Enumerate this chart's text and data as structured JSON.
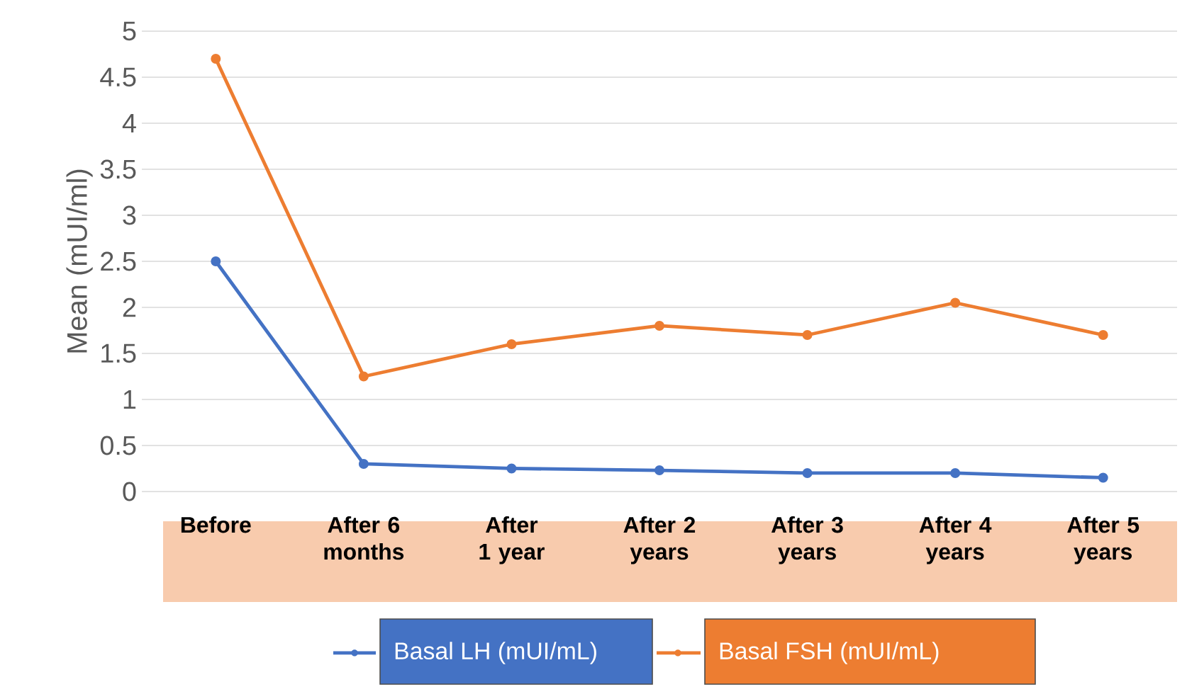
{
  "chart_data": {
    "type": "line",
    "ylabel": "Mean (mUI/ml)",
    "categories": [
      "Before",
      "After 6 months",
      "After 1 year",
      "After 2 years",
      "After 3 years",
      "After 4 years",
      "After 5 years"
    ],
    "series": [
      {
        "name": "Basal LH (mUI/mL)",
        "color": "#4472c4",
        "values": [
          2.5,
          0.3,
          0.25,
          0.23,
          0.2,
          0.2,
          0.15
        ]
      },
      {
        "name": "Basal FSH (mUI/mL)",
        "color": "#ed7d31",
        "values": [
          4.7,
          1.25,
          1.6,
          1.8,
          1.7,
          2.05,
          1.7
        ]
      }
    ],
    "ylim": [
      0,
      5
    ],
    "yticks": [
      0,
      0.5,
      1,
      1.5,
      2,
      2.5,
      3,
      3.5,
      4,
      4.5,
      5
    ],
    "grid": "y",
    "legend": "bottom",
    "marker": "circle",
    "line_style": "solid"
  }
}
